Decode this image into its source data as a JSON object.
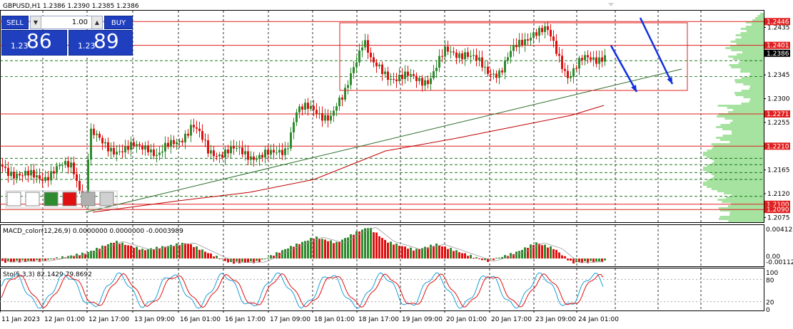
{
  "header": {
    "symbol": "GBPUSD,H1",
    "ohlc": "1.2386 1.2390 1.2385 1.2386"
  },
  "trade_panel": {
    "sell_label": "SELL",
    "buy_label": "BUY",
    "lot_value": "1.00",
    "bid_prefix": "1.23",
    "bid_big": "86",
    "ask_prefix": "1.23",
    "ask_big": "89"
  },
  "colors": {
    "bull": "#2e8b2e",
    "bear": "#e01010",
    "level_line": "#e02020",
    "dashed": "#006400",
    "arrow": "#1030e0",
    "volume_profile": "#a6e3a1"
  },
  "price_axis": {
    "ticks": [
      "1.2435",
      "1.2345",
      "1.2300",
      "1.2255",
      "1.2165",
      "1.2120",
      "1.2075"
    ],
    "level_labels": [
      "1.2446",
      "1.2401",
      "1.2386",
      "1.2271",
      "1.2210",
      "1.2100",
      "1.2090"
    ],
    "current_price": "1.2386"
  },
  "time_axis": {
    "labels": [
      "11 Jan 2023",
      "12 Jan 01:00",
      "12 Jan 17:00",
      "13 Jan 09:00",
      "16 Jan 01:00",
      "16 Jan 17:00",
      "17 Jan 09:00",
      "18 Jan 01:00",
      "18 Jan 17:00",
      "19 Jan 09:00",
      "20 Jan 01:00",
      "20 Jan 17:00",
      "23 Jan 09:00",
      "24 Jan 01:00"
    ]
  },
  "macd": {
    "label": "MACD_color(12,26,9) 0.0000000 0.0000000 -0.0003989",
    "ticks": [
      "0.004123",
      "0.00",
      "-0.00112"
    ]
  },
  "stochastic": {
    "label": "Sto(5,3,3) 82.1429 79.8692",
    "ticks": [
      "100",
      "80",
      "20",
      "0"
    ]
  },
  "toolbar_icons": [
    "window-icon",
    "window-icon",
    "bull-candle-icon",
    "bear-candle-icon",
    "neutral-icon",
    "line-chart-icon"
  ]
}
